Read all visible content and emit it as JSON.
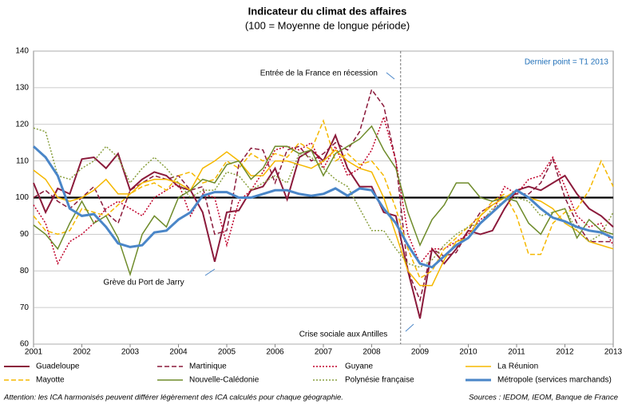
{
  "chart_data": {
    "type": "line",
    "title": "Indicateur du climat des affaires",
    "subtitle": "(100 = Moyenne de longue période)",
    "x": [
      2001,
      2001.25,
      2001.5,
      2001.75,
      2002,
      2002.25,
      2002.5,
      2002.75,
      2003,
      2003.25,
      2003.5,
      2003.75,
      2004,
      2004.25,
      2004.5,
      2004.75,
      2005,
      2005.25,
      2005.5,
      2005.75,
      2006,
      2006.25,
      2006.5,
      2006.75,
      2007,
      2007.25,
      2007.5,
      2007.75,
      2008,
      2008.25,
      2008.5,
      2008.75,
      2009,
      2009.25,
      2009.5,
      2009.75,
      2010,
      2010.25,
      2010.5,
      2010.75,
      2011,
      2011.25,
      2011.5,
      2011.75,
      2012,
      2012.25,
      2012.5,
      2012.75,
      2013
    ],
    "xlim": [
      2001,
      2013
    ],
    "xticks": [
      2001,
      2002,
      2003,
      2004,
      2005,
      2006,
      2007,
      2008,
      2009,
      2010,
      2011,
      2012,
      2013
    ],
    "ylim": [
      60,
      140
    ],
    "yticks": [
      60,
      70,
      80,
      90,
      100,
      110,
      120,
      130,
      140
    ],
    "grid": true,
    "reference_line": 100,
    "event_line": 2008.6,
    "series": [
      {
        "name": "Guadeloupe",
        "color": "#8b1a3b",
        "style": "solid",
        "width": 2,
        "values": [
          104,
          96,
          102.5,
          101,
          110.5,
          111,
          108,
          112,
          102,
          105,
          107,
          106,
          103,
          102,
          96,
          82.5,
          96,
          96.5,
          102,
          103,
          108,
          99.5,
          111,
          113,
          110,
          117,
          108,
          103,
          103,
          96,
          95,
          80,
          67,
          86,
          82,
          86,
          91,
          90,
          91,
          97,
          102,
          103,
          102,
          104,
          106,
          101,
          97,
          95,
          92
        ]
      },
      {
        "name": "Martinique",
        "color": "#8b1a3b",
        "style": "dashed",
        "width": 1.5,
        "values": [
          100,
          102,
          99,
          97,
          100,
          103,
          96,
          93,
          102,
          104,
          106,
          105,
          106,
          102,
          103,
          90,
          91,
          109,
          113.5,
          113,
          104,
          113,
          114,
          110,
          112,
          115,
          113,
          118,
          129.5,
          125,
          110,
          80,
          72,
          86,
          84,
          85,
          91,
          96,
          98,
          100,
          101,
          101,
          104,
          110.5,
          100,
          93,
          88,
          88,
          88
        ]
      },
      {
        "name": "Guyane",
        "color": "#c0002a",
        "style": "dotted",
        "width": 1.5,
        "values": [
          98,
          93,
          82,
          88,
          90,
          93,
          97,
          99,
          97,
          95,
          100,
          102,
          104,
          95,
          101,
          100,
          87,
          99,
          102,
          107,
          113,
          114,
          113,
          115,
          108,
          114,
          106,
          108,
          113,
          122,
          110,
          90,
          82,
          86,
          86,
          88,
          90,
          94,
          96,
          103,
          101,
          105,
          106,
          111,
          103,
          95,
          92,
          93,
          87
        ]
      },
      {
        "name": "La Réunion",
        "color": "#f5b800",
        "style": "solid",
        "width": 1.5,
        "values": [
          107.5,
          105,
          100,
          99,
          100,
          102,
          105,
          101,
          101,
          104,
          105,
          105,
          104,
          102,
          108,
          110,
          112.5,
          110,
          106,
          106,
          110,
          110,
          109,
          108,
          110,
          113,
          110,
          108,
          107,
          100,
          90,
          80,
          76,
          76,
          83,
          88,
          89,
          95,
          98,
          100,
          102,
          100,
          99,
          97,
          93,
          91,
          88,
          87,
          86
        ]
      },
      {
        "name": "Mayotte",
        "color": "#f5b800",
        "style": "dashed",
        "width": 1.5,
        "values": [
          95,
          91,
          90,
          91,
          97,
          96,
          95,
          98,
          101,
          103,
          104,
          102,
          106,
          107,
          104,
          105,
          110,
          108,
          112,
          110,
          112,
          111,
          115,
          113,
          121,
          110,
          112,
          109,
          110,
          106,
          97,
          86,
          78,
          80,
          86,
          89,
          92,
          95,
          99,
          101,
          95,
          84.5,
          84.5,
          93,
          96,
          97,
          102,
          110,
          103
        ]
      },
      {
        "name": "Nouvelle-Calédonie",
        "color": "#6e8b2a",
        "style": "solid",
        "width": 1.5,
        "values": [
          92.5,
          90,
          86,
          93,
          99,
          93,
          95,
          89,
          79,
          90,
          95,
          92,
          100,
          102,
          105,
          104,
          109,
          110,
          105,
          108,
          114,
          114,
          112,
          113,
          106,
          112,
          114,
          116,
          119.5,
          113,
          108,
          96,
          87,
          94,
          98,
          104,
          104,
          100,
          99,
          100,
          99,
          93,
          90,
          96,
          97,
          89,
          94,
          91,
          90
        ]
      },
      {
        "name": "Polynésie française",
        "color": "#8aa040",
        "style": "dotted",
        "width": 1.5,
        "values": [
          119,
          118,
          106,
          105,
          108,
          110,
          114,
          111,
          104,
          108,
          111,
          108,
          104,
          100,
          102,
          102,
          107,
          106,
          102,
          104,
          106,
          104,
          112,
          111,
          108,
          105,
          103,
          97,
          91,
          91,
          86,
          82,
          81,
          83,
          87,
          90,
          92,
          93,
          97,
          99,
          100,
          99,
          95,
          96,
          97,
          91,
          88,
          90,
          96
        ]
      },
      {
        "name": "Métropole (services marchands)",
        "color": "#4a86c8",
        "style": "solid",
        "width": 3,
        "values": [
          114,
          111,
          106,
          97,
          95,
          95.5,
          92,
          87.5,
          86.5,
          87,
          90.5,
          91,
          94,
          96,
          100.5,
          101.5,
          101.5,
          100,
          100,
          101,
          102,
          102,
          101,
          100.5,
          101,
          102.5,
          100.5,
          102.5,
          102,
          97,
          93,
          87,
          82,
          81,
          84,
          87,
          89,
          93,
          96,
          99,
          102,
          100,
          97,
          94.5,
          93.5,
          92,
          91,
          90.5,
          89
        ]
      }
    ],
    "annotations": [
      "Entrée de la France en récession",
      "Dernier point = T1 2013",
      "Grève du Port de Jarry",
      "Crise sociale aux Antilles"
    ],
    "footnote": "Attention: les ICA harmonisés peuvent différer légèrement des ICA calculés pour chaque géographie.",
    "source": "Sources : IEDOM, IEOM, Banque de France"
  }
}
